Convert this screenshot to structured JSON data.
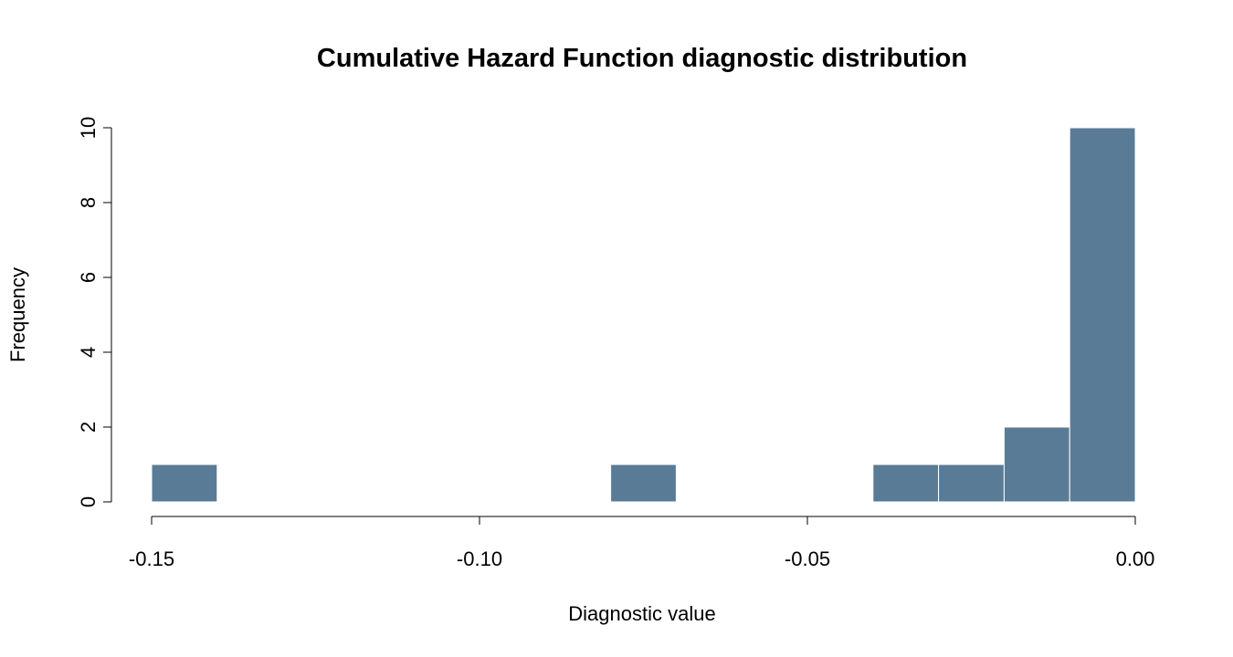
{
  "chart_data": {
    "type": "bar",
    "title": "Cumulative Hazard Function diagnostic distribution",
    "xlabel": "Diagnostic value",
    "ylabel": "Frequency",
    "xlim": [
      -0.15,
      0.0
    ],
    "ylim": [
      0,
      10
    ],
    "x_ticks": [
      "-0.15",
      "-0.10",
      "-0.05",
      "0.00"
    ],
    "x_tick_values": [
      -0.15,
      -0.1,
      -0.05,
      0.0
    ],
    "y_ticks": [
      "0",
      "2",
      "4",
      "6",
      "8",
      "10"
    ],
    "y_tick_values": [
      0,
      2,
      4,
      6,
      8,
      10
    ],
    "bins": [
      {
        "start": -0.15,
        "end": -0.14,
        "count": 1
      },
      {
        "start": -0.14,
        "end": -0.13,
        "count": 0
      },
      {
        "start": -0.13,
        "end": -0.12,
        "count": 0
      },
      {
        "start": -0.12,
        "end": -0.11,
        "count": 0
      },
      {
        "start": -0.11,
        "end": -0.1,
        "count": 0
      },
      {
        "start": -0.1,
        "end": -0.09,
        "count": 0
      },
      {
        "start": -0.09,
        "end": -0.08,
        "count": 0
      },
      {
        "start": -0.08,
        "end": -0.07,
        "count": 1
      },
      {
        "start": -0.07,
        "end": -0.06,
        "count": 0
      },
      {
        "start": -0.06,
        "end": -0.05,
        "count": 0
      },
      {
        "start": -0.05,
        "end": -0.04,
        "count": 0
      },
      {
        "start": -0.04,
        "end": -0.03,
        "count": 1
      },
      {
        "start": -0.03,
        "end": -0.02,
        "count": 1
      },
      {
        "start": -0.02,
        "end": -0.01,
        "count": 2
      },
      {
        "start": -0.01,
        "end": 0.0,
        "count": 10
      }
    ],
    "bar_color": "#5a7b96",
    "grid": false
  }
}
